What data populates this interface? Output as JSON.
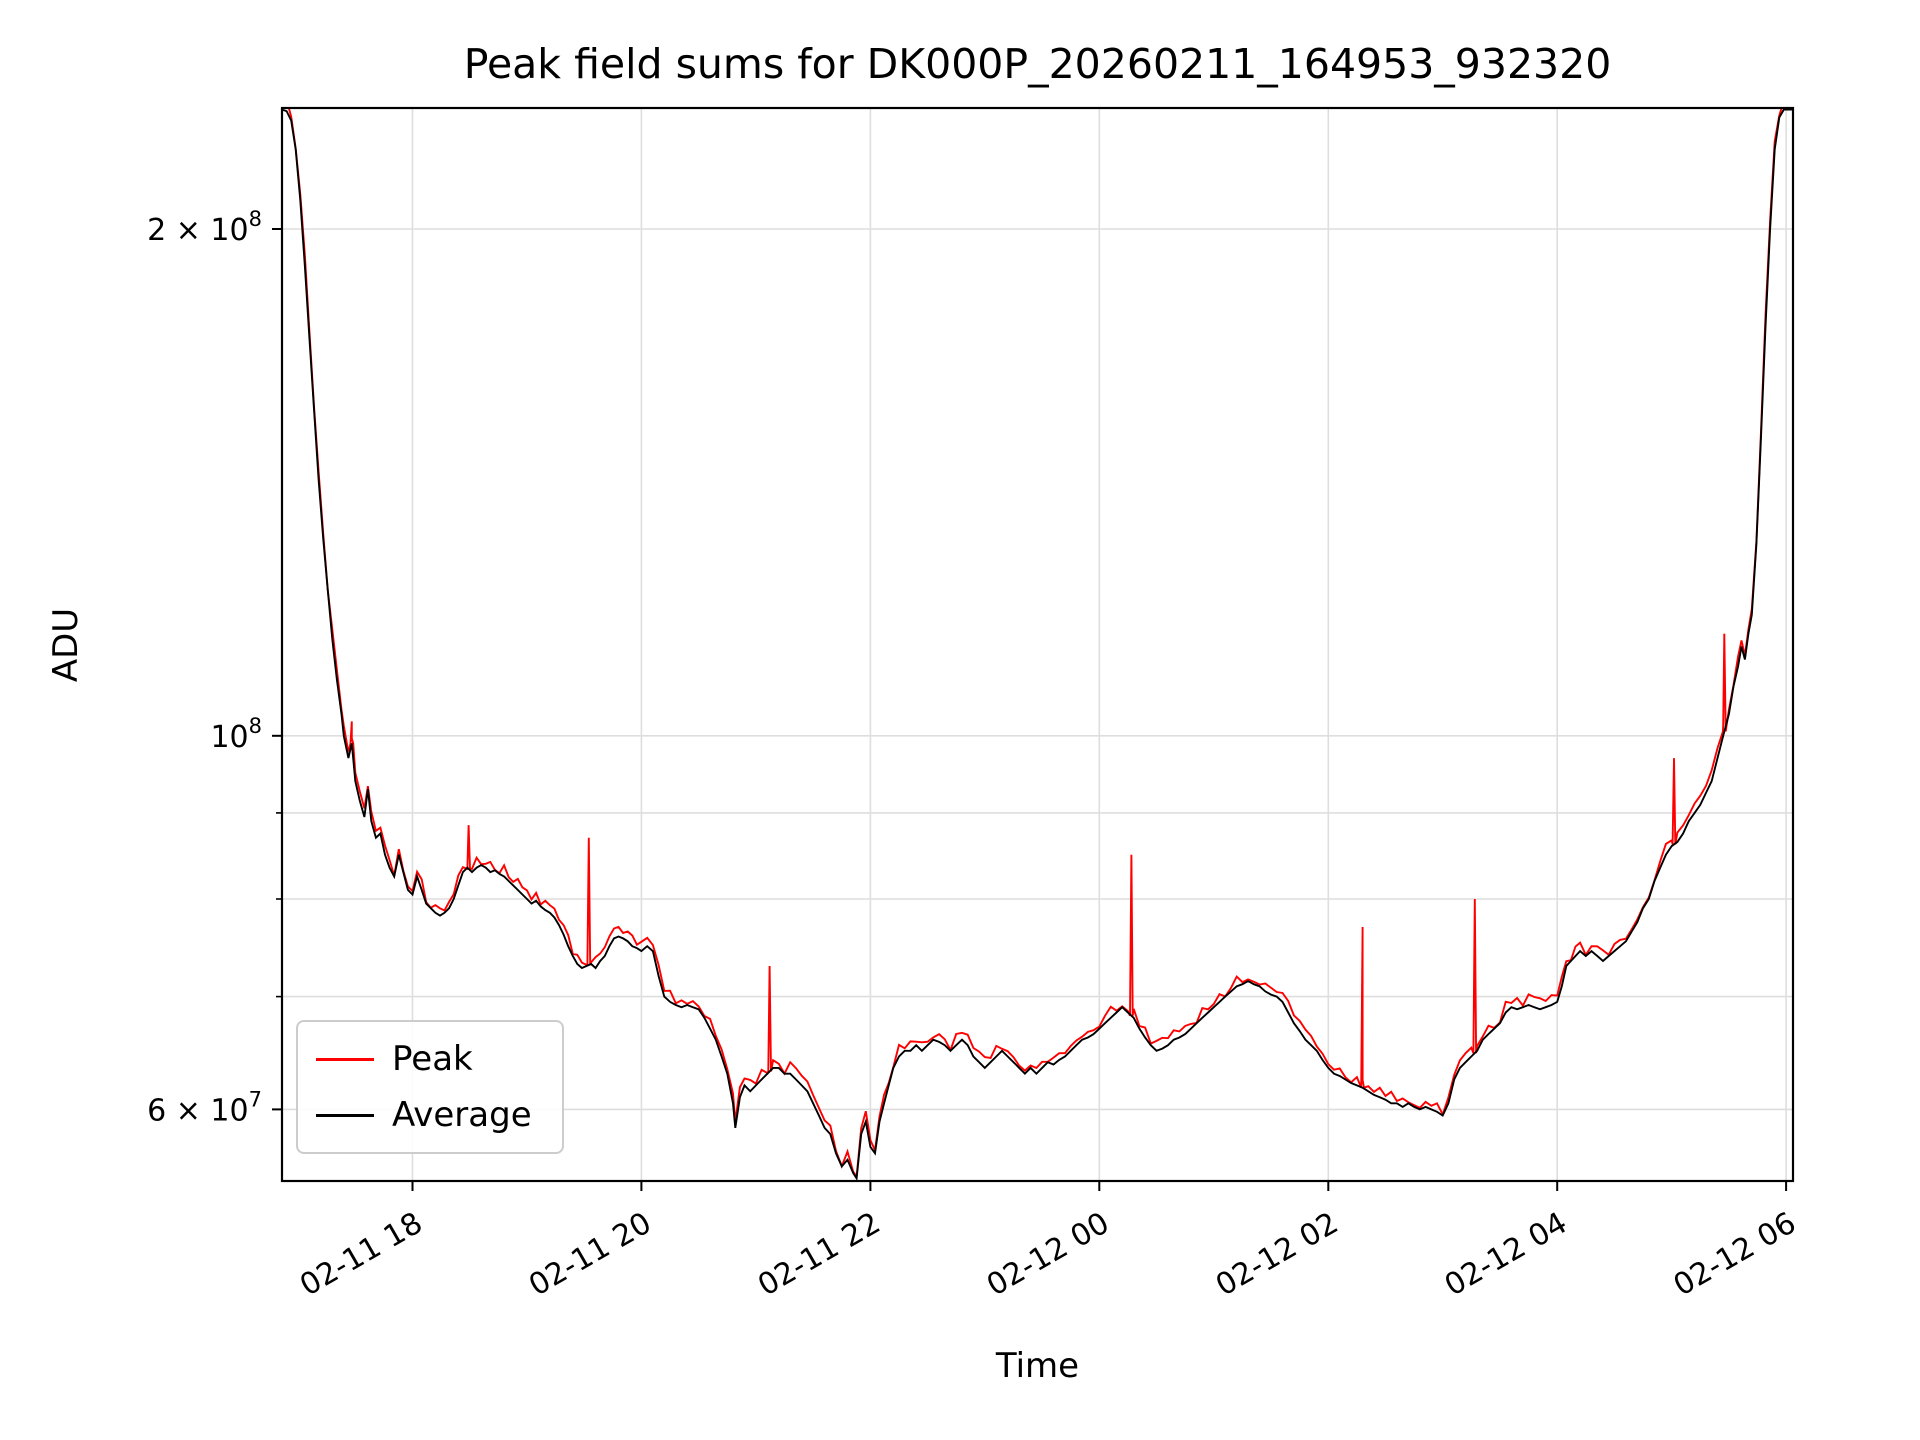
{
  "chart_data": {
    "type": "line",
    "title": "Peak field sums for DK000P_20260211_164953_932320",
    "xlabel": "Time",
    "ylabel": "ADU",
    "yscale": "log",
    "grid": true,
    "legend_position": "lower left",
    "x_tick_rotation_deg": 30,
    "x_unit": "hours since 2026-02-11 00:00",
    "xlim": [
      16.86,
      30.06
    ],
    "ylim": [
      54400000,
      236000000
    ],
    "value_scale": 10000000,
    "x_ticks": [
      {
        "t": 18,
        "label": "02-11 18"
      },
      {
        "t": 20,
        "label": "02-11 20"
      },
      {
        "t": 22,
        "label": "02-11 22"
      },
      {
        "t": 24,
        "label": "02-12 00"
      },
      {
        "t": 26,
        "label": "02-12 02"
      },
      {
        "t": 28,
        "label": "02-12 04"
      },
      {
        "t": 30,
        "label": "02-12 06"
      }
    ],
    "y_ticks": [
      {
        "v": 60000000,
        "label": "6 × 10^7"
      },
      {
        "v": 100000000,
        "label": "10^8"
      },
      {
        "v": 200000000,
        "label": "2 × 10^8"
      }
    ],
    "y_minor_ticks": [
      70000000,
      80000000,
      90000000
    ],
    "y_gridlines": [
      60000000,
      70000000,
      80000000,
      90000000,
      100000000,
      200000000
    ],
    "legend": [
      {
        "label": "Peak",
        "color": "#ff0000"
      },
      {
        "label": "Average",
        "color": "#000000"
      }
    ],
    "series": {
      "average": {
        "name": "Average",
        "color": "#000000",
        "points": [
          [
            16.86,
            23.55
          ],
          [
            16.9,
            23.5
          ],
          [
            16.94,
            23.2
          ],
          [
            16.98,
            22.3
          ],
          [
            17.02,
            20.8
          ],
          [
            17.06,
            19.0
          ],
          [
            17.1,
            17.2
          ],
          [
            17.14,
            15.6
          ],
          [
            17.18,
            14.2
          ],
          [
            17.22,
            13.1
          ],
          [
            17.26,
            12.2
          ],
          [
            17.3,
            11.4
          ],
          [
            17.34,
            10.8
          ],
          [
            17.38,
            10.3
          ],
          [
            17.4,
            10.0
          ],
          [
            17.44,
            9.7
          ],
          [
            17.47,
            9.9
          ],
          [
            17.5,
            9.4
          ],
          [
            17.54,
            9.15
          ],
          [
            17.58,
            8.95
          ],
          [
            17.61,
            9.3
          ],
          [
            17.64,
            8.9
          ],
          [
            17.68,
            8.7
          ],
          [
            17.72,
            8.75
          ],
          [
            17.76,
            8.5
          ],
          [
            17.8,
            8.35
          ],
          [
            17.84,
            8.25
          ],
          [
            17.88,
            8.5
          ],
          [
            17.92,
            8.3
          ],
          [
            17.96,
            8.1
          ],
          [
            18.0,
            8.05
          ],
          [
            18.04,
            8.25
          ],
          [
            18.08,
            8.1
          ],
          [
            18.12,
            7.95
          ],
          [
            18.16,
            7.9
          ],
          [
            18.2,
            7.85
          ],
          [
            18.24,
            7.82
          ],
          [
            18.28,
            7.85
          ],
          [
            18.32,
            7.9
          ],
          [
            18.36,
            8.0
          ],
          [
            18.4,
            8.15
          ],
          [
            18.44,
            8.3
          ],
          [
            18.48,
            8.35
          ],
          [
            18.52,
            8.3
          ],
          [
            18.56,
            8.35
          ],
          [
            18.6,
            8.38
          ],
          [
            18.64,
            8.35
          ],
          [
            18.68,
            8.3
          ],
          [
            18.72,
            8.32
          ],
          [
            18.76,
            8.28
          ],
          [
            18.8,
            8.25
          ],
          [
            18.84,
            8.2
          ],
          [
            18.88,
            8.15
          ],
          [
            18.92,
            8.1
          ],
          [
            18.96,
            8.05
          ],
          [
            19.0,
            8.0
          ],
          [
            19.04,
            7.95
          ],
          [
            19.08,
            7.98
          ],
          [
            19.12,
            7.92
          ],
          [
            19.16,
            7.88
          ],
          [
            19.2,
            7.85
          ],
          [
            19.24,
            7.8
          ],
          [
            19.28,
            7.72
          ],
          [
            19.32,
            7.62
          ],
          [
            19.36,
            7.5
          ],
          [
            19.4,
            7.4
          ],
          [
            19.44,
            7.32
          ],
          [
            19.48,
            7.28
          ],
          [
            19.52,
            7.3
          ],
          [
            19.56,
            7.32
          ],
          [
            19.6,
            7.28
          ],
          [
            19.64,
            7.35
          ],
          [
            19.68,
            7.4
          ],
          [
            19.72,
            7.5
          ],
          [
            19.76,
            7.58
          ],
          [
            19.8,
            7.6
          ],
          [
            19.84,
            7.58
          ],
          [
            19.88,
            7.55
          ],
          [
            19.92,
            7.5
          ],
          [
            19.96,
            7.48
          ],
          [
            20.0,
            7.45
          ],
          [
            20.05,
            7.5
          ],
          [
            20.1,
            7.45
          ],
          [
            20.15,
            7.2
          ],
          [
            20.2,
            7.0
          ],
          [
            20.25,
            6.95
          ],
          [
            20.3,
            6.92
          ],
          [
            20.35,
            6.9
          ],
          [
            20.4,
            6.92
          ],
          [
            20.45,
            6.9
          ],
          [
            20.5,
            6.88
          ],
          [
            20.55,
            6.8
          ],
          [
            20.6,
            6.7
          ],
          [
            20.65,
            6.6
          ],
          [
            20.7,
            6.45
          ],
          [
            20.75,
            6.3
          ],
          [
            20.8,
            6.05
          ],
          [
            20.82,
            5.85
          ],
          [
            20.86,
            6.1
          ],
          [
            20.9,
            6.2
          ],
          [
            20.95,
            6.15
          ],
          [
            21.0,
            6.2
          ],
          [
            21.05,
            6.25
          ],
          [
            21.1,
            6.3
          ],
          [
            21.15,
            6.35
          ],
          [
            21.2,
            6.35
          ],
          [
            21.25,
            6.3
          ],
          [
            21.3,
            6.3
          ],
          [
            21.35,
            6.25
          ],
          [
            21.4,
            6.2
          ],
          [
            21.45,
            6.15
          ],
          [
            21.5,
            6.05
          ],
          [
            21.55,
            5.95
          ],
          [
            21.6,
            5.85
          ],
          [
            21.65,
            5.8
          ],
          [
            21.7,
            5.65
          ],
          [
            21.75,
            5.55
          ],
          [
            21.8,
            5.6
          ],
          [
            21.85,
            5.5
          ],
          [
            21.88,
            5.46
          ],
          [
            21.92,
            5.8
          ],
          [
            21.96,
            5.9
          ],
          [
            22.0,
            5.7
          ],
          [
            22.04,
            5.65
          ],
          [
            22.08,
            5.9
          ],
          [
            22.12,
            6.05
          ],
          [
            22.16,
            6.2
          ],
          [
            22.2,
            6.35
          ],
          [
            22.25,
            6.45
          ],
          [
            22.3,
            6.5
          ],
          [
            22.35,
            6.5
          ],
          [
            22.4,
            6.55
          ],
          [
            22.45,
            6.5
          ],
          [
            22.5,
            6.55
          ],
          [
            22.55,
            6.6
          ],
          [
            22.6,
            6.58
          ],
          [
            22.65,
            6.55
          ],
          [
            22.7,
            6.5
          ],
          [
            22.75,
            6.55
          ],
          [
            22.8,
            6.6
          ],
          [
            22.85,
            6.55
          ],
          [
            22.9,
            6.45
          ],
          [
            22.95,
            6.4
          ],
          [
            23.0,
            6.35
          ],
          [
            23.05,
            6.4
          ],
          [
            23.1,
            6.45
          ],
          [
            23.15,
            6.5
          ],
          [
            23.2,
            6.45
          ],
          [
            23.25,
            6.4
          ],
          [
            23.3,
            6.35
          ],
          [
            23.35,
            6.3
          ],
          [
            23.4,
            6.35
          ],
          [
            23.45,
            6.3
          ],
          [
            23.5,
            6.35
          ],
          [
            23.55,
            6.4
          ],
          [
            23.6,
            6.38
          ],
          [
            23.65,
            6.42
          ],
          [
            23.7,
            6.45
          ],
          [
            23.75,
            6.5
          ],
          [
            23.8,
            6.55
          ],
          [
            23.85,
            6.6
          ],
          [
            23.9,
            6.62
          ],
          [
            23.95,
            6.65
          ],
          [
            24.0,
            6.7
          ],
          [
            24.05,
            6.75
          ],
          [
            24.1,
            6.8
          ],
          [
            24.15,
            6.85
          ],
          [
            24.2,
            6.9
          ],
          [
            24.25,
            6.85
          ],
          [
            24.3,
            6.8
          ],
          [
            24.35,
            6.7
          ],
          [
            24.4,
            6.62
          ],
          [
            24.45,
            6.55
          ],
          [
            24.5,
            6.5
          ],
          [
            24.55,
            6.52
          ],
          [
            24.6,
            6.55
          ],
          [
            24.65,
            6.6
          ],
          [
            24.7,
            6.62
          ],
          [
            24.75,
            6.65
          ],
          [
            24.8,
            6.7
          ],
          [
            24.85,
            6.75
          ],
          [
            24.9,
            6.8
          ],
          [
            24.95,
            6.85
          ],
          [
            25.0,
            6.9
          ],
          [
            25.05,
            6.95
          ],
          [
            25.1,
            7.0
          ],
          [
            25.15,
            7.05
          ],
          [
            25.2,
            7.1
          ],
          [
            25.25,
            7.12
          ],
          [
            25.3,
            7.15
          ],
          [
            25.35,
            7.12
          ],
          [
            25.4,
            7.1
          ],
          [
            25.45,
            7.05
          ],
          [
            25.5,
            7.02
          ],
          [
            25.55,
            7.0
          ],
          [
            25.6,
            6.95
          ],
          [
            25.65,
            6.85
          ],
          [
            25.7,
            6.75
          ],
          [
            25.75,
            6.68
          ],
          [
            25.8,
            6.6
          ],
          [
            25.85,
            6.55
          ],
          [
            25.9,
            6.5
          ],
          [
            25.95,
            6.42
          ],
          [
            26.0,
            6.35
          ],
          [
            26.05,
            6.3
          ],
          [
            26.1,
            6.28
          ],
          [
            26.15,
            6.25
          ],
          [
            26.2,
            6.22
          ],
          [
            26.25,
            6.2
          ],
          [
            26.3,
            6.18
          ],
          [
            26.35,
            6.15
          ],
          [
            26.4,
            6.12
          ],
          [
            26.45,
            6.1
          ],
          [
            26.5,
            6.08
          ],
          [
            26.55,
            6.05
          ],
          [
            26.6,
            6.05
          ],
          [
            26.65,
            6.02
          ],
          [
            26.7,
            6.05
          ],
          [
            26.75,
            6.02
          ],
          [
            26.8,
            6.0
          ],
          [
            26.85,
            6.02
          ],
          [
            26.9,
            6.0
          ],
          [
            26.95,
            5.98
          ],
          [
            27.0,
            5.95
          ],
          [
            27.05,
            6.05
          ],
          [
            27.1,
            6.25
          ],
          [
            27.15,
            6.35
          ],
          [
            27.2,
            6.4
          ],
          [
            27.25,
            6.45
          ],
          [
            27.3,
            6.5
          ],
          [
            27.35,
            6.6
          ],
          [
            27.4,
            6.65
          ],
          [
            27.45,
            6.7
          ],
          [
            27.5,
            6.75
          ],
          [
            27.55,
            6.85
          ],
          [
            27.6,
            6.9
          ],
          [
            27.65,
            6.88
          ],
          [
            27.7,
            6.9
          ],
          [
            27.75,
            6.92
          ],
          [
            27.8,
            6.9
          ],
          [
            27.85,
            6.88
          ],
          [
            27.9,
            6.9
          ],
          [
            27.95,
            6.92
          ],
          [
            28.0,
            6.95
          ],
          [
            28.04,
            7.1
          ],
          [
            28.08,
            7.3
          ],
          [
            28.12,
            7.35
          ],
          [
            28.16,
            7.4
          ],
          [
            28.2,
            7.45
          ],
          [
            28.25,
            7.4
          ],
          [
            28.3,
            7.45
          ],
          [
            28.35,
            7.4
          ],
          [
            28.4,
            7.35
          ],
          [
            28.45,
            7.4
          ],
          [
            28.5,
            7.45
          ],
          [
            28.55,
            7.5
          ],
          [
            28.6,
            7.55
          ],
          [
            28.65,
            7.65
          ],
          [
            28.7,
            7.75
          ],
          [
            28.75,
            7.9
          ],
          [
            28.8,
            8.0
          ],
          [
            28.85,
            8.2
          ],
          [
            28.9,
            8.35
          ],
          [
            28.95,
            8.5
          ],
          [
            29.0,
            8.6
          ],
          [
            29.05,
            8.65
          ],
          [
            29.1,
            8.75
          ],
          [
            29.15,
            8.9
          ],
          [
            29.2,
            9.0
          ],
          [
            29.25,
            9.1
          ],
          [
            29.3,
            9.25
          ],
          [
            29.35,
            9.4
          ],
          [
            29.4,
            9.7
          ],
          [
            29.45,
            10.0
          ],
          [
            29.5,
            10.3
          ],
          [
            29.54,
            10.7
          ],
          [
            29.58,
            11.0
          ],
          [
            29.61,
            11.3
          ],
          [
            29.64,
            11.1
          ],
          [
            29.67,
            11.5
          ],
          [
            29.7,
            11.8
          ],
          [
            29.74,
            13.0
          ],
          [
            29.78,
            15.0
          ],
          [
            29.82,
            17.5
          ],
          [
            29.86,
            20.0
          ],
          [
            29.9,
            22.3
          ],
          [
            29.94,
            23.3
          ],
          [
            29.98,
            23.55
          ],
          [
            30.06,
            23.55
          ]
        ]
      },
      "peak": {
        "name": "Peak",
        "color": "#ff0000",
        "based_on": "average",
        "noise_frac": 0.016,
        "spike_half_width_hours": 0.012,
        "spikes": [
          [
            17.47,
            10.2
          ],
          [
            18.49,
            8.85
          ],
          [
            19.54,
            8.7
          ],
          [
            21.12,
            7.3
          ],
          [
            24.28,
            8.5
          ],
          [
            26.3,
            7.7
          ],
          [
            27.28,
            8.0
          ],
          [
            29.02,
            9.7
          ],
          [
            29.46,
            11.5
          ]
        ]
      }
    }
  }
}
